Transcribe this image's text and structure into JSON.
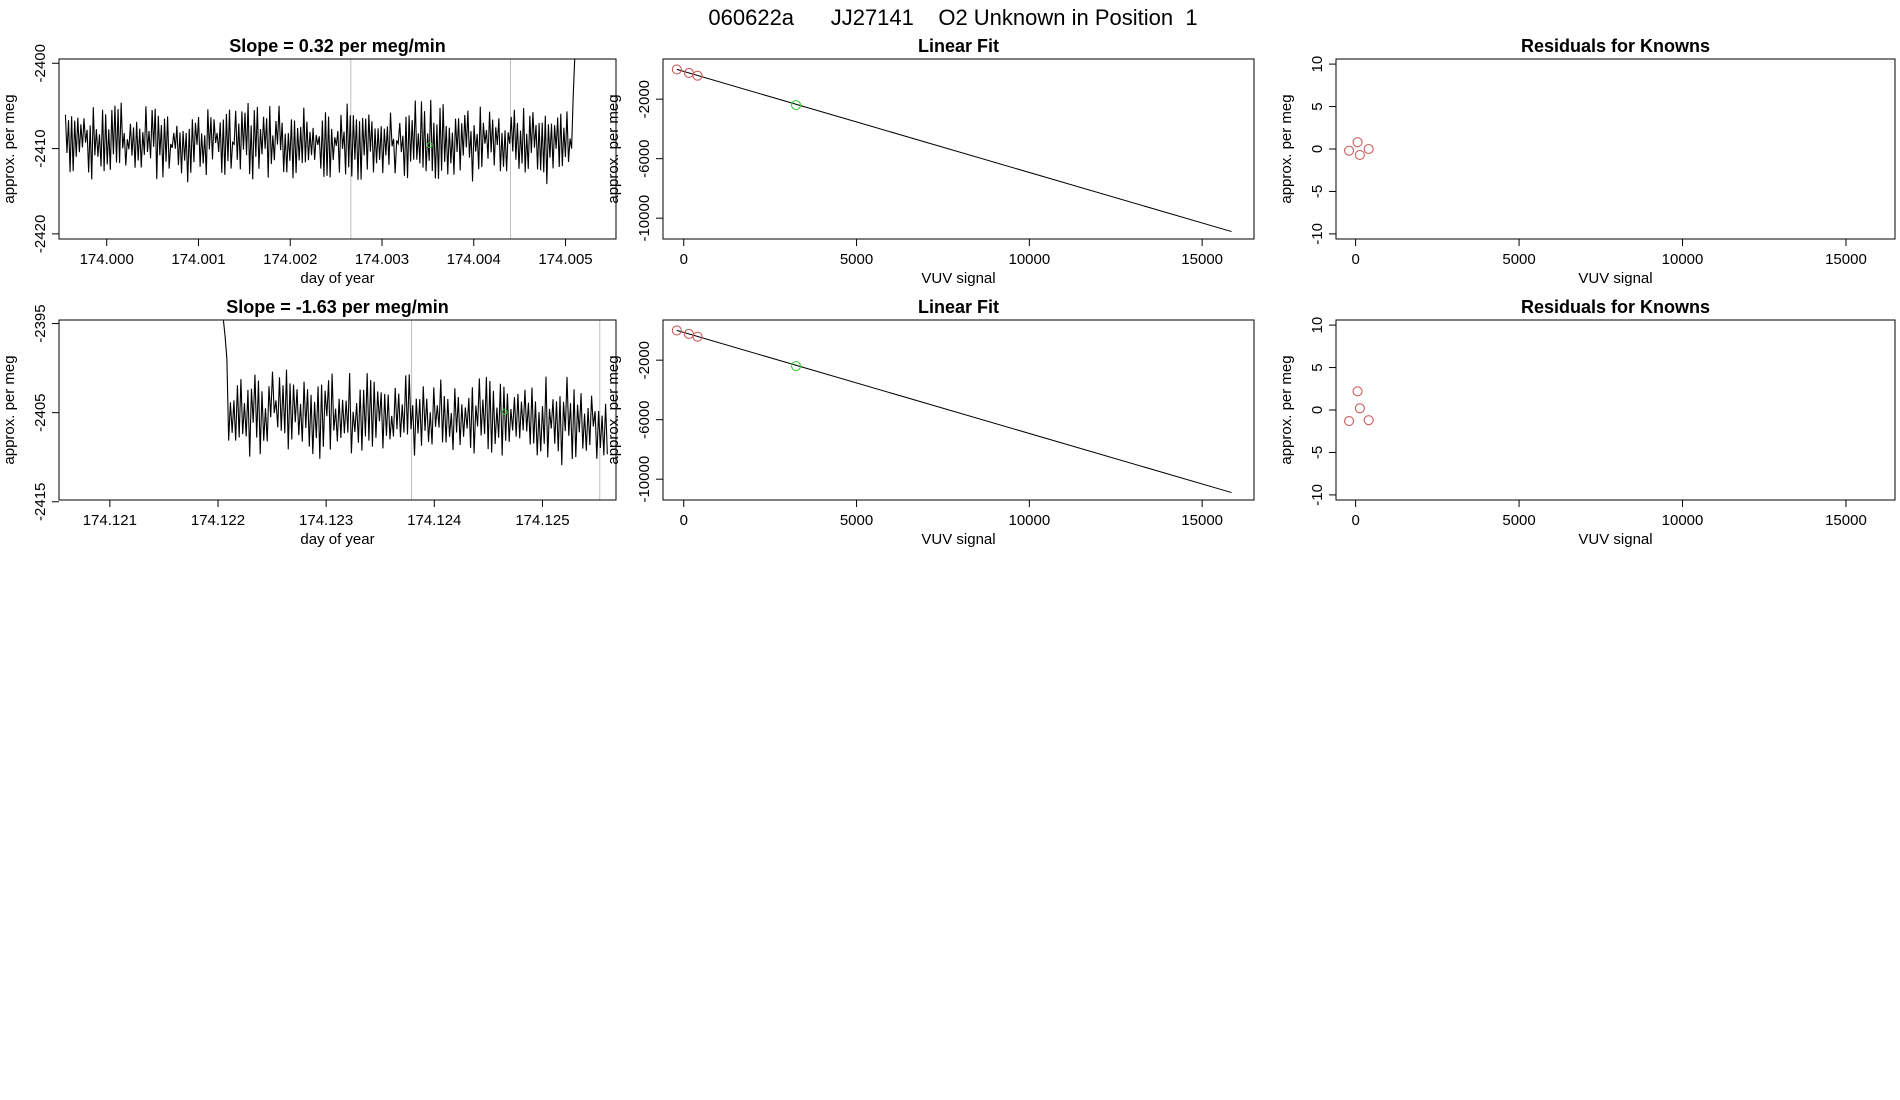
{
  "page": {
    "title": "060622a      JJ27141    O2 Unknown in Position  1"
  },
  "colors": {
    "series": "#000000",
    "marker_gray": "#bebebe",
    "known_point": "#cd5c5c",
    "unknown_point": "#32cd32"
  },
  "chart_data": [
    {
      "id": "ts1",
      "type": "line",
      "title": "Slope =  0.32  per meg/min",
      "xlabel": "day of year",
      "ylabel": "approx. per meg",
      "xlim": [
        173.99948,
        174.00555
      ],
      "ylim": [
        -2420.6,
        -2399.5
      ],
      "xticks": [
        174.0,
        174.001,
        174.002,
        174.003,
        174.004,
        174.005
      ],
      "xtick_labels": [
        "174.000",
        "174.001",
        "174.002",
        "174.003",
        "174.004",
        "174.005"
      ],
      "yticks": [
        -2420,
        -2410,
        -2400
      ],
      "ytick_labels": [
        "-2420",
        "-2410",
        "-2400"
      ],
      "series": {
        "x_start": 173.99955,
        "x_end": 174.0051,
        "mean": -2409.2,
        "amplitude": 3.6,
        "points": 330,
        "seed": 7,
        "end_values": [
          -2404.0,
          -2399.5
        ]
      },
      "vlines": [
        174.00266,
        174.0044
      ],
      "marker": {
        "x": 174.00352,
        "y": -2409.6
      }
    },
    {
      "id": "fit1",
      "type": "scatter",
      "title": "Linear Fit",
      "xlabel": "VUV signal",
      "ylabel": "approx. per meg",
      "xlim": [
        -600,
        16500
      ],
      "ylim": [
        -11400,
        700
      ],
      "xticks": [
        0,
        5000,
        10000,
        15000
      ],
      "xtick_labels": [
        "0",
        "5000",
        "10000",
        "15000"
      ],
      "yticks": [
        -10000,
        -6000,
        -2000
      ],
      "ytick_labels": [
        "-10000",
        "-6000",
        "-2000"
      ],
      "line": {
        "x": [
          -200,
          15850
        ],
        "y": [
          0,
          -10900
        ]
      },
      "knowns": [
        {
          "x": -200,
          "y": 0
        },
        {
          "x": 150,
          "y": -240
        },
        {
          "x": 400,
          "y": -420
        }
      ],
      "unknowns": [
        {
          "x": 3250,
          "y": -2400
        }
      ]
    },
    {
      "id": "res1",
      "type": "scatter",
      "title": "Residuals for Knowns",
      "xlabel": "VUV signal",
      "ylabel": "approx. per meg",
      "xlim": [
        -600,
        16500
      ],
      "ylim": [
        -10.6,
        10.6
      ],
      "xticks": [
        0,
        5000,
        10000,
        15000
      ],
      "xtick_labels": [
        "0",
        "5000",
        "10000",
        "15000"
      ],
      "yticks": [
        -10,
        -5,
        0,
        5,
        10
      ],
      "ytick_labels": [
        "-10",
        "-5",
        "0",
        "5",
        "10"
      ],
      "knowns": [
        {
          "x": -200,
          "y": -0.2
        },
        {
          "x": 60,
          "y": 0.8
        },
        {
          "x": 130,
          "y": -0.7
        },
        {
          "x": 400,
          "y": 0.0
        }
      ]
    },
    {
      "id": "ts2",
      "type": "line",
      "title": "Slope =  -1.63  per meg/min",
      "xlabel": "day of year",
      "ylabel": "approx. per meg",
      "xlim": [
        174.12053,
        174.12568
      ],
      "ylim": [
        -2414.8,
        -2394.6
      ],
      "xticks": [
        174.121,
        174.122,
        174.123,
        174.124,
        174.125
      ],
      "xtick_labels": [
        "174.121",
        "174.122",
        "174.123",
        "174.124",
        "174.125"
      ],
      "yticks": [
        -2415,
        -2405,
        -2395
      ],
      "ytick_labels": [
        "-2415",
        "-2405",
        "-2395"
      ],
      "series": {
        "x_start": 174.12205,
        "x_end": 174.1256,
        "mean": -2404.8,
        "amplitude": 3.6,
        "points": 220,
        "seed": 13,
        "start_values": [
          -2394.6,
          -2396.5,
          -2399.0
        ],
        "drift": -1.2
      },
      "vlines": [
        174.12379,
        174.12553
      ],
      "marker": {
        "x": 174.12465,
        "y": -2404.9
      }
    },
    {
      "id": "fit2",
      "type": "scatter",
      "title": "Linear Fit",
      "xlabel": "VUV signal",
      "ylabel": "approx. per meg",
      "xlim": [
        -600,
        16500
      ],
      "ylim": [
        -11400,
        700
      ],
      "xticks": [
        0,
        5000,
        10000,
        15000
      ],
      "xtick_labels": [
        "0",
        "5000",
        "10000",
        "15000"
      ],
      "yticks": [
        -10000,
        -6000,
        -2000
      ],
      "ytick_labels": [
        "-10000",
        "-6000",
        "-2000"
      ],
      "line": {
        "x": [
          -200,
          15850
        ],
        "y": [
          0,
          -10900
        ]
      },
      "knowns": [
        {
          "x": -200,
          "y": 0
        },
        {
          "x": 150,
          "y": -240
        },
        {
          "x": 400,
          "y": -420
        }
      ],
      "unknowns": [
        {
          "x": 3250,
          "y": -2400
        }
      ]
    },
    {
      "id": "res2",
      "type": "scatter",
      "title": "Residuals for Knowns",
      "xlabel": "VUV signal",
      "ylabel": "approx. per meg",
      "xlim": [
        -600,
        16500
      ],
      "ylim": [
        -10.6,
        10.6
      ],
      "xticks": [
        0,
        5000,
        10000,
        15000
      ],
      "xtick_labels": [
        "0",
        "5000",
        "10000",
        "15000"
      ],
      "yticks": [
        -10,
        -5,
        0,
        5,
        10
      ],
      "ytick_labels": [
        "-10",
        "-5",
        "0",
        "5",
        "10"
      ],
      "knowns": [
        {
          "x": -200,
          "y": -1.3
        },
        {
          "x": 60,
          "y": 2.2
        },
        {
          "x": 130,
          "y": 0.2
        },
        {
          "x": 400,
          "y": -1.2
        }
      ]
    }
  ]
}
